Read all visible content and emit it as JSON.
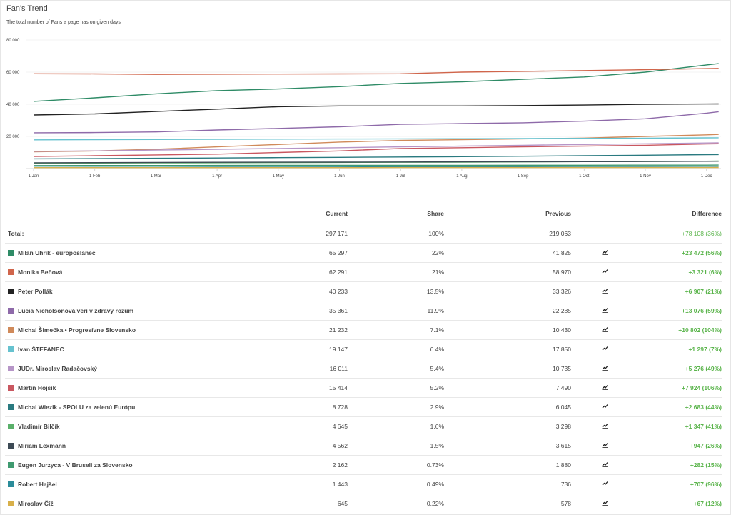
{
  "title": "Fan's Trend",
  "subtitle": "The total number of Fans a page has on given days",
  "chart_data": {
    "type": "line",
    "yticks": [
      "80 000",
      "60 000",
      "40 000",
      "20 000"
    ],
    "ylim": [
      0,
      80000
    ],
    "xticks": [
      "1 Jan",
      "1 Feb",
      "1 Mar",
      "1 Apr",
      "1 May",
      "1 Jun",
      "1 Jul",
      "1 Aug",
      "1 Sep",
      "1 Oct",
      "1 Nov",
      "1 Dec"
    ],
    "x": [
      "1 Jan",
      "1 Feb",
      "1 Mar",
      "1 Apr",
      "1 May",
      "1 Jun",
      "1 Jul",
      "1 Aug",
      "1 Sep",
      "1 Oct",
      "1 Nov",
      "1 Dec",
      "8 Dec"
    ],
    "series": [
      {
        "color": "#2e8b66",
        "values": [
          41825,
          44000,
          46500,
          48500,
          49500,
          51000,
          53000,
          54000,
          55500,
          57000,
          60000,
          64500,
          65297
        ]
      },
      {
        "color": "#d0654b",
        "values": [
          58970,
          58900,
          58600,
          58700,
          58800,
          58900,
          59000,
          60000,
          60500,
          61000,
          61500,
          62200,
          62291
        ]
      },
      {
        "color": "#222222",
        "values": [
          33326,
          34000,
          35500,
          37000,
          38500,
          39000,
          39000,
          39000,
          39200,
          39500,
          40000,
          40200,
          40233
        ]
      },
      {
        "color": "#8e6aa9",
        "values": [
          22285,
          22400,
          22800,
          24000,
          25000,
          26000,
          27500,
          28000,
          28500,
          29500,
          31000,
          34500,
          35361
        ]
      },
      {
        "color": "#d08a5a",
        "values": [
          10430,
          11000,
          12000,
          13500,
          15000,
          16500,
          17500,
          18000,
          18500,
          19000,
          20000,
          21000,
          21232
        ]
      },
      {
        "color": "#66c2cf",
        "values": [
          17850,
          18000,
          18100,
          18200,
          18300,
          18400,
          18500,
          18600,
          18700,
          18800,
          18900,
          19100,
          19147
        ]
      },
      {
        "color": "#b695c7",
        "values": [
          10735,
          11000,
          11500,
          12000,
          12500,
          13000,
          13500,
          14000,
          14500,
          15000,
          15400,
          15900,
          16011
        ]
      },
      {
        "color": "#c95760",
        "values": [
          7490,
          8000,
          8500,
          9000,
          10000,
          11000,
          12500,
          13000,
          13500,
          14000,
          14500,
          15300,
          15414
        ]
      },
      {
        "color": "#2a7a80",
        "values": [
          6045,
          6200,
          6400,
          6600,
          6800,
          7000,
          7200,
          7400,
          7700,
          8000,
          8300,
          8650,
          8728
        ]
      },
      {
        "color": "#5ab06a",
        "values": [
          3298,
          3400,
          3500,
          3600,
          3700,
          3800,
          3900,
          4000,
          4150,
          4300,
          4450,
          4600,
          4645
        ]
      },
      {
        "color": "#3d4a55",
        "values": [
          3615,
          3700,
          3800,
          3900,
          3950,
          4000,
          4100,
          4200,
          4250,
          4300,
          4400,
          4530,
          4562
        ]
      },
      {
        "color": "#3f9a70",
        "values": [
          1880,
          1900,
          1930,
          1960,
          1990,
          2010,
          2030,
          2060,
          2080,
          2100,
          2120,
          2150,
          2162
        ]
      },
      {
        "color": "#2b8c9a",
        "values": [
          736,
          780,
          820,
          880,
          940,
          1000,
          1060,
          1130,
          1200,
          1280,
          1350,
          1420,
          1443
        ]
      },
      {
        "color": "#d8b04a",
        "values": [
          578,
          580,
          585,
          590,
          595,
          600,
          605,
          610,
          615,
          620,
          630,
          640,
          645
        ]
      }
    ]
  },
  "table": {
    "headers": {
      "current": "Current",
      "share": "Share",
      "previous": "Previous",
      "difference": "Difference"
    },
    "total": {
      "name": "Total:",
      "current": "297 171",
      "share": "100%",
      "previous": "219 063",
      "difference": "+78 108 (36%)"
    },
    "rows": [
      {
        "name": "Milan Uhrík - europoslanec",
        "color": "#2e8b66",
        "current": "65 297",
        "share": "22%",
        "previous": "41 825",
        "difference": "+23 472 (56%)"
      },
      {
        "name": "Monika Beňová",
        "color": "#d0654b",
        "current": "62 291",
        "share": "21%",
        "previous": "58 970",
        "difference": "+3 321 (6%)"
      },
      {
        "name": "Peter Pollák",
        "color": "#222222",
        "current": "40 233",
        "share": "13.5%",
        "previous": "33 326",
        "difference": "+6 907 (21%)"
      },
      {
        "name": "Lucia Nicholsonová verí v zdravý rozum",
        "color": "#8e6aa9",
        "current": "35 361",
        "share": "11.9%",
        "previous": "22 285",
        "difference": "+13 076 (59%)"
      },
      {
        "name": "Michal Šimečka • Progresívne Slovensko",
        "color": "#d08a5a",
        "current": "21 232",
        "share": "7.1%",
        "previous": "10 430",
        "difference": "+10 802 (104%)"
      },
      {
        "name": "Ivan ŠTEFANEC",
        "color": "#66c2cf",
        "current": "19 147",
        "share": "6.4%",
        "previous": "17 850",
        "difference": "+1 297 (7%)"
      },
      {
        "name": "JUDr. Miroslav Radačovský",
        "color": "#b695c7",
        "current": "16 011",
        "share": "5.4%",
        "previous": "10 735",
        "difference": "+5 276 (49%)"
      },
      {
        "name": "Martin Hojsík",
        "color": "#c95760",
        "current": "15 414",
        "share": "5.2%",
        "previous": "7 490",
        "difference": "+7 924 (106%)"
      },
      {
        "name": "Michal Wiezik - SPOLU za zelenú Európu",
        "color": "#2a7a80",
        "current": "8 728",
        "share": "2.9%",
        "previous": "6 045",
        "difference": "+2 683 (44%)"
      },
      {
        "name": "Vladimír Bilčík",
        "color": "#5ab06a",
        "current": "4 645",
        "share": "1.6%",
        "previous": "3 298",
        "difference": "+1 347 (41%)"
      },
      {
        "name": "Miriam Lexmann",
        "color": "#3d4a55",
        "current": "4 562",
        "share": "1.5%",
        "previous": "3 615",
        "difference": "+947 (26%)"
      },
      {
        "name": "Eugen Jurzyca - V Bruseli za Slovensko",
        "color": "#3f9a70",
        "current": "2 162",
        "share": "0.73%",
        "previous": "1 880",
        "difference": "+282 (15%)"
      },
      {
        "name": "Robert Hajšel",
        "color": "#2b8c9a",
        "current": "1 443",
        "share": "0.49%",
        "previous": "736",
        "difference": "+707 (96%)"
      },
      {
        "name": "Miroslav Číž",
        "color": "#d8b04a",
        "current": "645",
        "share": "0.22%",
        "previous": "578",
        "difference": "+67 (12%)"
      }
    ]
  }
}
